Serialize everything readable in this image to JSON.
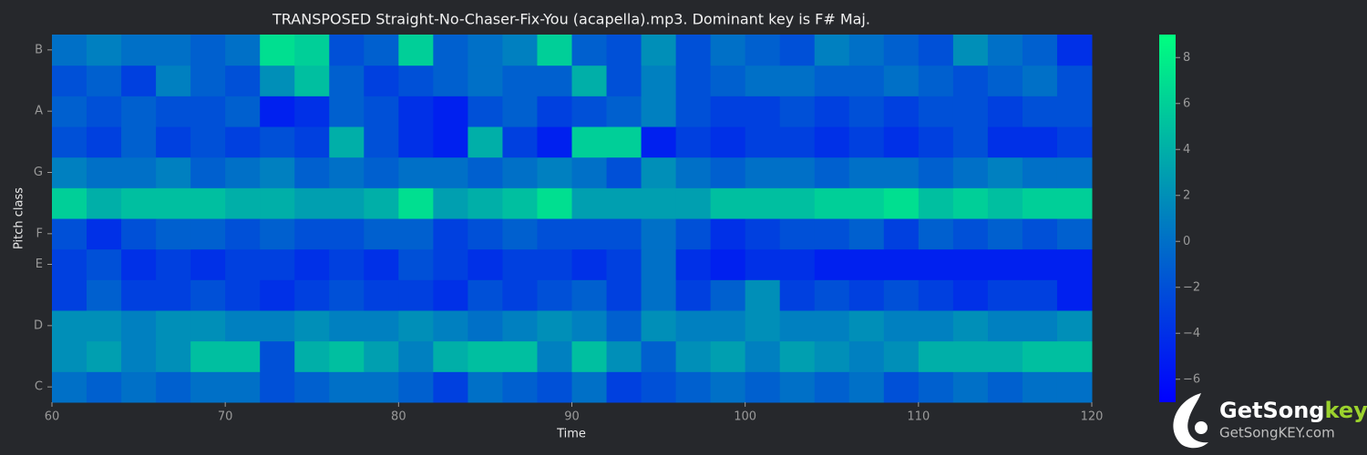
{
  "chart_data": {
    "type": "heatmap",
    "title": "TRANSPOSED Straight-No-Chaser-Fix-You (acapella).mp3. Dominant key is F# Maj.",
    "xlabel": "Time",
    "ylabel": "Pitch class",
    "colormap": "winter",
    "x": [
      60,
      62,
      64,
      66,
      68,
      70,
      72,
      74,
      76,
      78,
      80,
      82,
      84,
      86,
      88,
      90,
      92,
      94,
      96,
      98,
      100,
      102,
      104,
      106,
      108,
      110,
      112,
      114,
      116,
      118
    ],
    "xlim": [
      60,
      120
    ],
    "xticks": [
      60,
      70,
      80,
      90,
      100,
      110,
      120
    ],
    "ylim": [
      -0.5,
      11.5
    ],
    "yticks": [
      {
        "value": 0,
        "label": "C"
      },
      {
        "value": 2,
        "label": "D"
      },
      {
        "value": 4,
        "label": "E"
      },
      {
        "value": 5,
        "label": "F"
      },
      {
        "value": 7,
        "label": "G"
      },
      {
        "value": 9,
        "label": "A"
      },
      {
        "value": 11,
        "label": "B"
      }
    ],
    "z": [
      [
        0,
        -1,
        0,
        -1,
        0,
        0,
        -2,
        -1,
        0,
        0,
        -1,
        -3,
        0,
        -1,
        -2,
        0,
        -3,
        -2,
        -1,
        0,
        -1,
        0,
        -1,
        0,
        -2,
        -1,
        0,
        -1,
        0,
        0
      ],
      [
        2,
        3,
        1,
        2,
        5,
        5,
        -2,
        4,
        5,
        3,
        1,
        4,
        5,
        5,
        1,
        5,
        2,
        -1,
        2,
        3,
        1,
        3,
        2,
        1,
        2,
        4,
        4,
        4,
        5,
        5
      ],
      [
        2,
        2,
        1,
        2,
        2,
        1,
        1,
        2,
        1,
        1,
        2,
        1,
        0,
        1,
        2,
        1,
        -1,
        2,
        1,
        1,
        2,
        1,
        1,
        2,
        1,
        1,
        2,
        1,
        1,
        2
      ],
      [
        -3,
        -1,
        -3,
        -3,
        -2,
        -3,
        -4,
        -3,
        -2,
        -3,
        -3,
        -4,
        -2,
        -3,
        -2,
        -1,
        -3,
        0,
        -3,
        -1,
        2,
        -3,
        -2,
        -3,
        -2,
        -3,
        -4,
        -3,
        -3,
        -5
      ],
      [
        -3,
        -2,
        -4,
        -3,
        -4,
        -3,
        -3,
        -4,
        -3,
        -4,
        -2,
        -3,
        -4,
        -3,
        -3,
        -4,
        -3,
        0,
        -4,
        -5,
        -4,
        -4,
        -5,
        -5,
        -5,
        -5,
        -5,
        -5,
        -5,
        -5
      ],
      [
        -2,
        -4,
        -2,
        -1,
        -1,
        -2,
        -1,
        -2,
        -2,
        -1,
        -1,
        -3,
        -2,
        -1,
        -2,
        -2,
        -2,
        0,
        -2,
        -4,
        -3,
        -2,
        -2,
        -1,
        -3,
        -1,
        -2,
        -1,
        -2,
        -1
      ],
      [
        6,
        4,
        5,
        5,
        5,
        4,
        4,
        3,
        3,
        4,
        7,
        3,
        4,
        5,
        7,
        3,
        3,
        3,
        3,
        5,
        5,
        5,
        6,
        6,
        7,
        5,
        6,
        5,
        6,
        6
      ],
      [
        1,
        0,
        0,
        1,
        -1,
        0,
        1,
        -1,
        0,
        -1,
        0,
        0,
        -1,
        0,
        1,
        0,
        -2,
        2,
        0,
        -1,
        0,
        0,
        -1,
        0,
        0,
        -1,
        0,
        1,
        0,
        0
      ],
      [
        -2,
        -3,
        -1,
        -3,
        -2,
        -3,
        -2,
        -3,
        4,
        -2,
        -4,
        -5,
        4,
        -3,
        -5,
        6,
        6,
        -5,
        -3,
        -4,
        -3,
        -3,
        -4,
        -3,
        -4,
        -3,
        -2,
        -4,
        -4,
        -3
      ],
      [
        -1,
        -2,
        -1,
        -2,
        -2,
        -1,
        -5,
        -4,
        -1,
        -2,
        -4,
        -5,
        -2,
        -1,
        -3,
        -2,
        -1,
        1,
        -2,
        -3,
        -3,
        -2,
        -3,
        -2,
        -3,
        -2,
        -2,
        -3,
        -2,
        -2
      ],
      [
        -2,
        -1,
        -3,
        1,
        -1,
        -2,
        2,
        5,
        -1,
        -3,
        -2,
        -1,
        0,
        -1,
        -1,
        4,
        -2,
        1,
        -2,
        -1,
        0,
        0,
        -1,
        -1,
        0,
        -1,
        -2,
        -1,
        0,
        -2
      ],
      [
        0,
        1,
        0,
        0,
        -1,
        0,
        7,
        6,
        -2,
        -1,
        6,
        -1,
        0,
        1,
        6,
        -1,
        -2,
        2,
        -2,
        0,
        -1,
        -2,
        1,
        0,
        -1,
        -2,
        2,
        0,
        -1,
        -4
      ]
    ],
    "clim": [
      -7,
      9
    ],
    "cticks": [
      {
        "value": -6,
        "label": "−6"
      },
      {
        "value": -4,
        "label": "−4"
      },
      {
        "value": -2,
        "label": "−2"
      },
      0,
      2,
      4,
      6,
      8
    ],
    "watermark": {
      "brand": [
        "GetSong",
        "key"
      ],
      "url": "GetSongKEY.com"
    }
  }
}
